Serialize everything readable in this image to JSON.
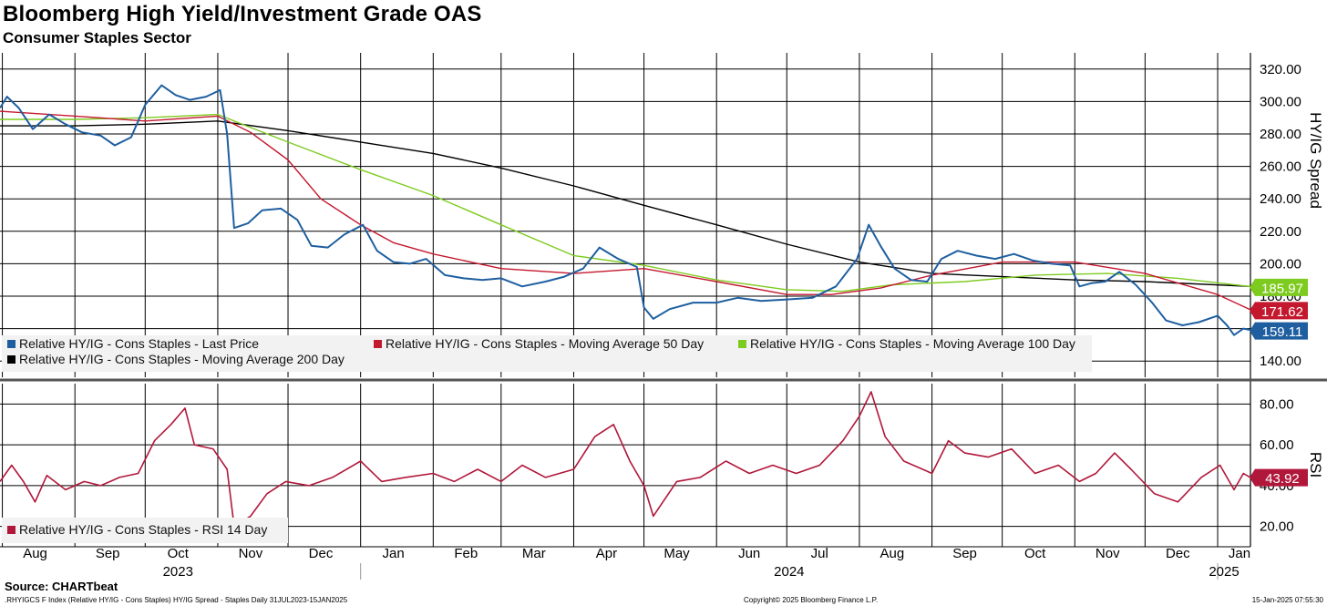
{
  "header": {
    "title": "Bloomberg High Yield/Investment Grade OAS",
    "subtitle": "Consumer Staples Sector"
  },
  "footer": {
    "source": "Source: CHARTbeat",
    "left": ".RHYIGCS F Index (Relative HY/IG - Cons Staples) HY/IG Spread - Staples  Daily 31JUL2023-15JAN2025",
    "center": "Copyright© 2025 Bloomberg Finance L.P.",
    "right": "15-Jan-2025 07:55:30"
  },
  "colors": {
    "last_price": "#1f5fa0",
    "ma50": "#c4182e",
    "ma100": "#7ecb1f",
    "ma200": "#000000",
    "rsi": "#b0173a",
    "grid": "#000000"
  },
  "chart_data": [
    {
      "type": "line",
      "ylabel": "HY/IG Spread",
      "ylim": [
        130,
        330
      ],
      "y_ticks": [
        "320.00",
        "300.00",
        "280.00",
        "260.00",
        "240.00",
        "220.00",
        "200.00",
        "180.00",
        "160.00",
        "140.00"
      ],
      "x_month_labels": [
        "Aug",
        "Sep",
        "Oct",
        "Nov",
        "Dec",
        "Jan",
        "Feb",
        "Mar",
        "Apr",
        "May",
        "Jun",
        "Jul",
        "Aug",
        "Sep",
        "Oct",
        "Nov",
        "Dec",
        "Jan"
      ],
      "year_labels": [
        "2023",
        "2024",
        "2025"
      ],
      "x_range": [
        "2023-07-31",
        "2025-01-15"
      ],
      "grid": true,
      "legend_placement": "bottom-left",
      "series": [
        {
          "name": "Relative HY/IG - Cons Staples - Last Price",
          "color": "#1f5fa0",
          "last_value": "159.11",
          "points": [
            [
              "2023-07-31",
              296
            ],
            [
              "2023-08-03",
              303
            ],
            [
              "2023-08-08",
              296
            ],
            [
              "2023-08-14",
              283
            ],
            [
              "2023-08-21",
              292
            ],
            [
              "2023-08-28",
              286
            ],
            [
              "2023-09-04",
              281
            ],
            [
              "2023-09-12",
              279
            ],
            [
              "2023-09-18",
              273
            ],
            [
              "2023-09-25",
              278
            ],
            [
              "2023-10-01",
              298
            ],
            [
              "2023-10-08",
              310
            ],
            [
              "2023-10-14",
              304
            ],
            [
              "2023-10-20",
              301
            ],
            [
              "2023-10-27",
              303
            ],
            [
              "2023-11-02",
              307
            ],
            [
              "2023-11-05",
              280
            ],
            [
              "2023-11-08",
              222
            ],
            [
              "2023-11-14",
              225
            ],
            [
              "2023-11-20",
              233
            ],
            [
              "2023-11-28",
              234
            ],
            [
              "2023-12-05",
              227
            ],
            [
              "2023-12-11",
              211
            ],
            [
              "2023-12-18",
              210
            ],
            [
              "2023-12-25",
              218
            ],
            [
              "2024-01-02",
              224
            ],
            [
              "2024-01-08",
              208
            ],
            [
              "2024-01-15",
              201
            ],
            [
              "2024-01-22",
              200
            ],
            [
              "2024-01-29",
              203
            ],
            [
              "2024-02-06",
              193
            ],
            [
              "2024-02-14",
              191
            ],
            [
              "2024-02-22",
              190
            ],
            [
              "2024-03-01",
              191
            ],
            [
              "2024-03-10",
              186
            ],
            [
              "2024-03-20",
              189
            ],
            [
              "2024-03-28",
              192
            ],
            [
              "2024-04-05",
              197
            ],
            [
              "2024-04-12",
              210
            ],
            [
              "2024-04-20",
              203
            ],
            [
              "2024-04-28",
              198
            ],
            [
              "2024-05-01",
              173
            ],
            [
              "2024-05-05",
              166
            ],
            [
              "2024-05-12",
              172
            ],
            [
              "2024-05-22",
              176
            ],
            [
              "2024-06-01",
              176
            ],
            [
              "2024-06-10",
              179
            ],
            [
              "2024-06-20",
              177
            ],
            [
              "2024-07-01",
              178
            ],
            [
              "2024-07-12",
              179
            ],
            [
              "2024-07-22",
              186
            ],
            [
              "2024-07-31",
              203
            ],
            [
              "2024-08-05",
              224
            ],
            [
              "2024-08-10",
              211
            ],
            [
              "2024-08-16",
              197
            ],
            [
              "2024-08-23",
              190
            ],
            [
              "2024-08-30",
              189
            ],
            [
              "2024-09-05",
              203
            ],
            [
              "2024-09-12",
              208
            ],
            [
              "2024-09-20",
              205
            ],
            [
              "2024-09-28",
              203
            ],
            [
              "2024-10-06",
              206
            ],
            [
              "2024-10-14",
              202
            ],
            [
              "2024-10-22",
              200
            ],
            [
              "2024-10-30",
              199
            ],
            [
              "2024-11-03",
              186
            ],
            [
              "2024-11-08",
              188
            ],
            [
              "2024-11-14",
              189
            ],
            [
              "2024-11-20",
              195
            ],
            [
              "2024-11-27",
              187
            ],
            [
              "2024-12-04",
              176
            ],
            [
              "2024-12-10",
              165
            ],
            [
              "2024-12-17",
              162
            ],
            [
              "2024-12-24",
              164
            ],
            [
              "2025-01-01",
              168
            ],
            [
              "2025-01-05",
              162
            ],
            [
              "2025-01-08",
              156
            ],
            [
              "2025-01-12",
              160
            ],
            [
              "2025-01-15",
              159.11
            ]
          ]
        },
        {
          "name": "Relative HY/IG - Cons Staples - Moving Average 50 Day",
          "color": "#c4182e",
          "last_value": "171.62",
          "points": [
            [
              "2023-07-31",
              294
            ],
            [
              "2023-09-01",
              291
            ],
            [
              "2023-10-01",
              288
            ],
            [
              "2023-11-01",
              291
            ],
            [
              "2023-11-15",
              281
            ],
            [
              "2023-12-01",
              264
            ],
            [
              "2023-12-15",
              240
            ],
            [
              "2024-01-01",
              224
            ],
            [
              "2024-01-15",
              213
            ],
            [
              "2024-02-01",
              206
            ],
            [
              "2024-03-01",
              197
            ],
            [
              "2024-04-01",
              194
            ],
            [
              "2024-05-01",
              197
            ],
            [
              "2024-06-01",
              189
            ],
            [
              "2024-07-01",
              181
            ],
            [
              "2024-07-20",
              181
            ],
            [
              "2024-08-10",
              185
            ],
            [
              "2024-09-01",
              193
            ],
            [
              "2024-10-01",
              201
            ],
            [
              "2024-11-01",
              201
            ],
            [
              "2024-12-01",
              194
            ],
            [
              "2025-01-01",
              181
            ],
            [
              "2025-01-15",
              171.62
            ]
          ]
        },
        {
          "name": "Relative HY/IG - Cons Staples - Moving Average 100 Day",
          "color": "#7ecb1f",
          "last_value": "185.97",
          "points": [
            [
              "2023-07-31",
              289
            ],
            [
              "2023-09-01",
              289
            ],
            [
              "2023-10-01",
              290
            ],
            [
              "2023-11-01",
              292
            ],
            [
              "2023-11-15",
              284
            ],
            [
              "2023-12-01",
              275
            ],
            [
              "2024-01-01",
              258
            ],
            [
              "2024-02-01",
              242
            ],
            [
              "2024-03-01",
              224
            ],
            [
              "2024-04-01",
              205
            ],
            [
              "2024-05-01",
              199
            ],
            [
              "2024-06-01",
              190
            ],
            [
              "2024-07-01",
              184
            ],
            [
              "2024-07-25",
              183
            ],
            [
              "2024-08-15",
              187
            ],
            [
              "2024-09-15",
              189
            ],
            [
              "2024-10-15",
              193
            ],
            [
              "2024-11-15",
              194
            ],
            [
              "2024-12-15",
              191
            ],
            [
              "2025-01-15",
              185.97
            ]
          ]
        },
        {
          "name": "Relative HY/IG - Cons Staples - Moving Average 200 Day",
          "color": "#000000",
          "last_value": "185.97",
          "points": [
            [
              "2023-07-31",
              285
            ],
            [
              "2023-09-01",
              285
            ],
            [
              "2023-10-01",
              286
            ],
            [
              "2023-11-01",
              288
            ],
            [
              "2023-12-01",
              282
            ],
            [
              "2024-01-01",
              275
            ],
            [
              "2024-02-01",
              268
            ],
            [
              "2024-03-01",
              259
            ],
            [
              "2024-04-01",
              248
            ],
            [
              "2024-05-01",
              236
            ],
            [
              "2024-06-01",
              224
            ],
            [
              "2024-07-01",
              212
            ],
            [
              "2024-08-01",
              201
            ],
            [
              "2024-09-01",
              194
            ],
            [
              "2024-10-01",
              192
            ],
            [
              "2024-11-01",
              190
            ],
            [
              "2024-12-01",
              189
            ],
            [
              "2025-01-15",
              186
            ]
          ]
        }
      ],
      "legend": [
        "Relative HY/IG - Cons Staples - Last Price",
        "Relative HY/IG - Cons Staples - Moving Average 50 Day",
        "Relative HY/IG - Cons Staples - Moving Average 100 Day",
        "Relative HY/IG - Cons Staples - Moving Average 200 Day"
      ]
    },
    {
      "type": "line",
      "ylabel": "RSI",
      "ylim": [
        10,
        90
      ],
      "y_ticks": [
        "80.00",
        "60.00",
        "40.00",
        "20.00"
      ],
      "grid": true,
      "legend_placement": "bottom-left",
      "series": [
        {
          "name": "Relative HY/IG - Cons Staples - RSI 14 Day",
          "color": "#b0173a",
          "last_value": "43.92",
          "points": [
            [
              "2023-07-31",
              42
            ],
            [
              "2023-08-05",
              50
            ],
            [
              "2023-08-10",
              42
            ],
            [
              "2023-08-15",
              32
            ],
            [
              "2023-08-20",
              45
            ],
            [
              "2023-08-28",
              38
            ],
            [
              "2023-09-05",
              42
            ],
            [
              "2023-09-12",
              40
            ],
            [
              "2023-09-20",
              44
            ],
            [
              "2023-09-28",
              46
            ],
            [
              "2023-10-05",
              62
            ],
            [
              "2023-10-12",
              70
            ],
            [
              "2023-10-18",
              78
            ],
            [
              "2023-10-22",
              60
            ],
            [
              "2023-10-30",
              58
            ],
            [
              "2023-11-05",
              48
            ],
            [
              "2023-11-08",
              20
            ],
            [
              "2023-11-15",
              25
            ],
            [
              "2023-11-22",
              36
            ],
            [
              "2023-11-30",
              42
            ],
            [
              "2023-12-10",
              40
            ],
            [
              "2023-12-20",
              44
            ],
            [
              "2024-01-01",
              52
            ],
            [
              "2024-01-10",
              42
            ],
            [
              "2024-01-20",
              44
            ],
            [
              "2024-02-01",
              46
            ],
            [
              "2024-02-10",
              42
            ],
            [
              "2024-02-20",
              48
            ],
            [
              "2024-03-01",
              42
            ],
            [
              "2024-03-10",
              50
            ],
            [
              "2024-03-20",
              44
            ],
            [
              "2024-04-01",
              48
            ],
            [
              "2024-04-10",
              64
            ],
            [
              "2024-04-18",
              70
            ],
            [
              "2024-04-25",
              52
            ],
            [
              "2024-05-01",
              40
            ],
            [
              "2024-05-05",
              25
            ],
            [
              "2024-05-15",
              42
            ],
            [
              "2024-05-25",
              44
            ],
            [
              "2024-06-05",
              52
            ],
            [
              "2024-06-15",
              46
            ],
            [
              "2024-06-25",
              50
            ],
            [
              "2024-07-05",
              46
            ],
            [
              "2024-07-15",
              50
            ],
            [
              "2024-07-25",
              62
            ],
            [
              "2024-08-01",
              74
            ],
            [
              "2024-08-06",
              86
            ],
            [
              "2024-08-12",
              64
            ],
            [
              "2024-08-20",
              52
            ],
            [
              "2024-09-01",
              46
            ],
            [
              "2024-09-08",
              62
            ],
            [
              "2024-09-15",
              56
            ],
            [
              "2024-09-25",
              54
            ],
            [
              "2024-10-05",
              58
            ],
            [
              "2024-10-15",
              46
            ],
            [
              "2024-10-25",
              50
            ],
            [
              "2024-11-03",
              42
            ],
            [
              "2024-11-10",
              46
            ],
            [
              "2024-11-18",
              56
            ],
            [
              "2024-11-25",
              48
            ],
            [
              "2024-12-05",
              36
            ],
            [
              "2024-12-15",
              32
            ],
            [
              "2024-12-25",
              44
            ],
            [
              "2025-01-02",
              50
            ],
            [
              "2025-01-08",
              38
            ],
            [
              "2025-01-12",
              46
            ],
            [
              "2025-01-15",
              43.92
            ]
          ]
        }
      ],
      "legend": [
        "Relative HY/IG - Cons Staples - RSI 14 Day"
      ]
    }
  ]
}
